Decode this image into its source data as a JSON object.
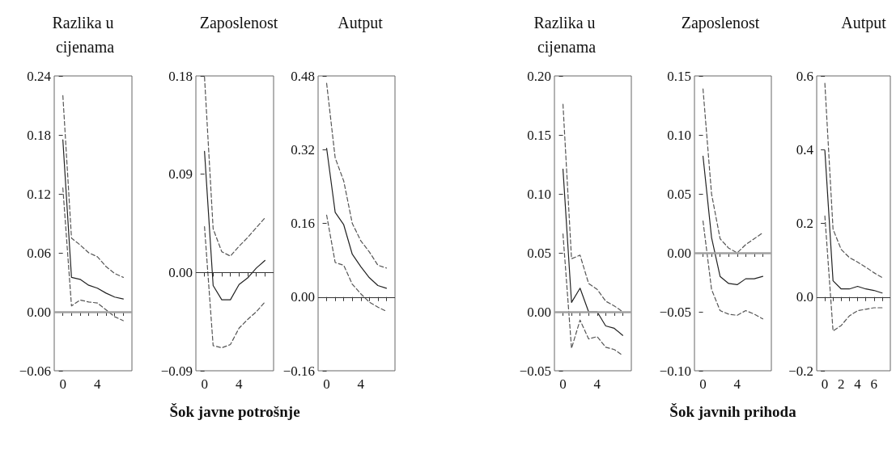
{
  "chart_data": [
    {
      "type": "line",
      "title": "Razlika u cijenama",
      "x": [
        0,
        1,
        2,
        3,
        4,
        5,
        6,
        7
      ],
      "xlim": [
        -1,
        8
      ],
      "xticks": [
        0,
        {
          "value": 1,
          "label": null
        },
        {
          "value": 2,
          "label": null
        },
        {
          "value": 3,
          "label": null
        },
        4,
        {
          "value": 5,
          "label": null
        },
        {
          "value": 6,
          "label": null
        },
        {
          "value": 7,
          "label": null
        }
      ],
      "ylim": [
        -0.06,
        0.24
      ],
      "yticks": [
        {
          "value": -0.06,
          "label": "−0.06"
        },
        {
          "value": 0,
          "label": "0.00"
        },
        0.06,
        0.12,
        0.18,
        0.24
      ],
      "grid": false,
      "marker": "none",
      "series": [
        {
          "color": "#555555",
          "line_style": "dashed",
          "values": [
            0.22,
            0.075,
            0.068,
            0.06,
            0.056,
            0.046,
            0.039,
            0.035
          ]
        },
        {
          "color": "#222222",
          "line_style": "solid",
          "values": [
            0.175,
            0.035,
            0.033,
            0.027,
            0.024,
            0.019,
            0.015,
            0.013
          ]
        },
        {
          "color": "#555555",
          "line_style": "dashed",
          "values": [
            0.126,
            0.006,
            0.012,
            0.01,
            0.009,
            0.002,
            -0.005,
            -0.009
          ]
        }
      ],
      "ref_lines": [
        {
          "axis": "y",
          "value": 0,
          "color": "#a0a0a0"
        }
      ]
    },
    {
      "type": "line",
      "title": "Zaposlenost",
      "annotations": [
        "Šok javne potrošnje"
      ],
      "x": [
        0,
        1,
        2,
        3,
        4,
        5,
        6,
        7
      ],
      "xlim": [
        -1,
        8
      ],
      "xticks": [
        0,
        {
          "value": 1,
          "label": null
        },
        {
          "value": 2,
          "label": null
        },
        {
          "value": 3,
          "label": null
        },
        4,
        {
          "value": 5,
          "label": null
        },
        {
          "value": 6,
          "label": null
        },
        {
          "value": 7,
          "label": null
        }
      ],
      "ylim": [
        -0.09,
        0.18
      ],
      "yticks": [
        {
          "value": -0.09,
          "label": "−0.09"
        },
        {
          "value": 0,
          "label": "0.00"
        },
        0.09,
        0.18
      ],
      "grid": false,
      "marker": "none",
      "series": [
        {
          "color": "#555555",
          "line_style": "dashed",
          "values": [
            0.179,
            0.04,
            0.019,
            0.015,
            0.024,
            0.032,
            0.041,
            0.05
          ]
        },
        {
          "color": "#222222",
          "line_style": "solid",
          "values": [
            0.111,
            -0.012,
            -0.025,
            -0.025,
            -0.011,
            -0.005,
            0.004,
            0.011
          ]
        },
        {
          "color": "#555555",
          "line_style": "dashed",
          "values": [
            0.042,
            -0.067,
            -0.069,
            -0.066,
            -0.051,
            -0.043,
            -0.036,
            -0.027
          ]
        }
      ],
      "ref_lines": [
        {
          "axis": "y",
          "value": 0,
          "color": "#333333"
        }
      ]
    },
    {
      "type": "line",
      "title": "Autput",
      "x": [
        0,
        1,
        2,
        3,
        4,
        5,
        6,
        7
      ],
      "xlim": [
        -1,
        8
      ],
      "xticks": [
        0,
        {
          "value": 1,
          "label": null
        },
        {
          "value": 2,
          "label": null
        },
        {
          "value": 3,
          "label": null
        },
        4,
        {
          "value": 5,
          "label": null
        },
        {
          "value": 6,
          "label": null
        },
        {
          "value": 7,
          "label": null
        }
      ],
      "ylim": [
        -0.16,
        0.48
      ],
      "yticks": [
        {
          "value": -0.16,
          "label": "−0.16"
        },
        {
          "value": 0,
          "label": "0.00"
        },
        0.16,
        0.32,
        0.48
      ],
      "grid": false,
      "marker": "none",
      "series": [
        {
          "color": "#555555",
          "line_style": "dashed",
          "values": [
            0.464,
            0.302,
            0.252,
            0.16,
            0.122,
            0.098,
            0.069,
            0.063
          ]
        },
        {
          "color": "#222222",
          "line_style": "solid",
          "values": [
            0.323,
            0.184,
            0.157,
            0.093,
            0.066,
            0.042,
            0.025,
            0.019
          ]
        },
        {
          "color": "#555555",
          "line_style": "dashed",
          "values": [
            0.178,
            0.075,
            0.069,
            0.028,
            0.007,
            -0.011,
            -0.022,
            -0.031
          ]
        }
      ],
      "ref_lines": [
        {
          "axis": "y",
          "value": 0,
          "color": "#333333"
        }
      ]
    },
    {
      "type": "line",
      "title": "Razlika u cijenama",
      "x": [
        0,
        1,
        2,
        3,
        4,
        5,
        6,
        7
      ],
      "xlim": [
        -1,
        8
      ],
      "xticks": [
        0,
        {
          "value": 1,
          "label": null
        },
        {
          "value": 2,
          "label": null
        },
        {
          "value": 3,
          "label": null
        },
        4,
        {
          "value": 5,
          "label": null
        },
        {
          "value": 6,
          "label": null
        },
        {
          "value": 7,
          "label": null
        }
      ],
      "ylim": [
        -0.05,
        0.2
      ],
      "yticks": [
        {
          "value": -0.05,
          "label": "−0.05"
        },
        {
          "value": 0,
          "label": "0.00"
        },
        0.05,
        {
          "value": 0.1,
          "label": "0.10"
        },
        0.15,
        {
          "value": 0.2,
          "label": "0.20"
        }
      ],
      "grid": false,
      "marker": "none",
      "series": [
        {
          "color": "#555555",
          "line_style": "dashed",
          "values": [
            0.176,
            0.045,
            0.048,
            0.024,
            0.019,
            0.009,
            0.005,
            0.0
          ]
        },
        {
          "color": "#222222",
          "line_style": "solid",
          "values": [
            0.121,
            0.008,
            0.02,
            0.0,
            0.0,
            -0.012,
            -0.014,
            -0.02
          ]
        },
        {
          "color": "#555555",
          "line_style": "dashed",
          "values": [
            0.066,
            -0.031,
            -0.007,
            -0.023,
            -0.021,
            -0.03,
            -0.032,
            -0.037
          ]
        }
      ],
      "ref_lines": [
        {
          "axis": "y",
          "value": 0,
          "color": "#a0a0a0"
        }
      ]
    },
    {
      "type": "line",
      "title": "Zaposlenost",
      "annotations": [
        "Šok javnih prihoda"
      ],
      "x": [
        0,
        1,
        2,
        3,
        4,
        5,
        6,
        7
      ],
      "xlim": [
        -1,
        8
      ],
      "xticks": [
        0,
        {
          "value": 1,
          "label": null
        },
        {
          "value": 2,
          "label": null
        },
        {
          "value": 3,
          "label": null
        },
        4,
        {
          "value": 5,
          "label": null
        },
        {
          "value": 6,
          "label": null
        },
        {
          "value": 7,
          "label": null
        }
      ],
      "ylim": [
        -0.1,
        0.15
      ],
      "yticks": [
        {
          "value": -0.1,
          "label": "−0.10"
        },
        {
          "value": -0.05,
          "label": "−0.05"
        },
        {
          "value": 0,
          "label": "0.00"
        },
        0.05,
        {
          "value": 0.1,
          "label": "0.10"
        },
        0.15
      ],
      "grid": false,
      "marker": "none",
      "series": [
        {
          "color": "#555555",
          "line_style": "dashed",
          "values": [
            0.139,
            0.05,
            0.012,
            0.004,
            0.0,
            0.007,
            0.012,
            0.017
          ]
        },
        {
          "color": "#222222",
          "line_style": "solid",
          "values": [
            0.082,
            0.013,
            -0.02,
            -0.026,
            -0.027,
            -0.022,
            -0.022,
            -0.02
          ]
        },
        {
          "color": "#555555",
          "line_style": "dashed",
          "values": [
            0.027,
            -0.031,
            -0.049,
            -0.052,
            -0.053,
            -0.049,
            -0.052,
            -0.056
          ]
        }
      ],
      "ref_lines": [
        {
          "axis": "y",
          "value": 0,
          "color": "#a0a0a0"
        }
      ]
    },
    {
      "type": "line",
      "title": "Autput",
      "x": [
        0,
        1,
        2,
        3,
        4,
        5,
        6,
        7
      ],
      "xlim": [
        -1,
        8
      ],
      "xticks": [
        0,
        {
          "value": 1,
          "label": null
        },
        2,
        {
          "value": 3,
          "label": null
        },
        4,
        {
          "value": 5,
          "label": null
        },
        6,
        {
          "value": 7,
          "label": null
        }
      ],
      "ylim": [
        -0.2,
        0.6
      ],
      "yticks": [
        {
          "value": -0.2,
          "label": "−0.2"
        },
        {
          "value": 0,
          "label": "0.0"
        },
        0.2,
        0.4,
        0.6
      ],
      "grid": false,
      "marker": "none",
      "series": [
        {
          "color": "#555555",
          "line_style": "dashed",
          "values": [
            0.58,
            0.184,
            0.129,
            0.107,
            0.095,
            0.081,
            0.066,
            0.053
          ]
        },
        {
          "color": "#222222",
          "line_style": "solid",
          "values": [
            0.398,
            0.044,
            0.022,
            0.022,
            0.029,
            0.022,
            0.018,
            0.011
          ]
        },
        {
          "color": "#555555",
          "line_style": "dashed",
          "values": [
            0.22,
            -0.092,
            -0.077,
            -0.051,
            -0.037,
            -0.033,
            -0.029,
            -0.029
          ]
        }
      ],
      "ref_lines": [
        {
          "axis": "y",
          "value": 0,
          "color": "#333333"
        }
      ]
    }
  ]
}
